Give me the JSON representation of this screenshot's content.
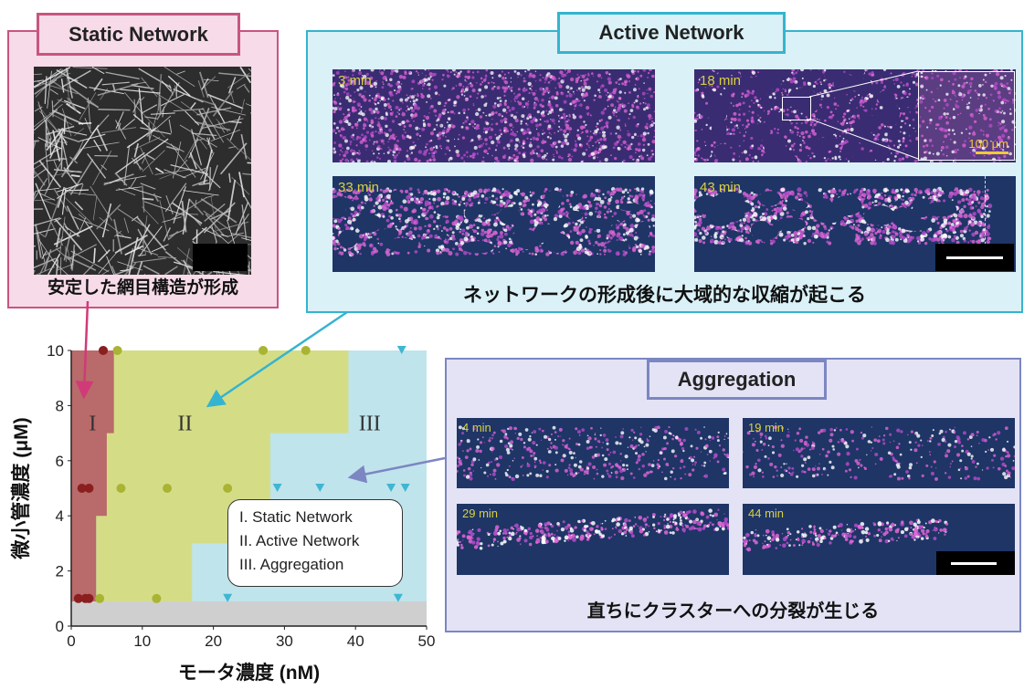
{
  "static_network": {
    "title": "Static Network",
    "caption": "安定した網目構造が形成"
  },
  "active_network": {
    "title": "Active Network",
    "caption": "ネットワークの形成後に大域的な収縮が起こる",
    "frames": [
      {
        "time": "3 min"
      },
      {
        "time": "18 min"
      },
      {
        "time": "33 min"
      },
      {
        "time": "43 min"
      }
    ],
    "inset_scale": "100 μm"
  },
  "aggregation": {
    "title": "Aggregation",
    "caption": "直ちにクラスターへの分裂が生じる",
    "frames": [
      {
        "time": "4 min"
      },
      {
        "time": "19 min"
      },
      {
        "time": "29 min"
      },
      {
        "time": "44 min"
      }
    ]
  },
  "legend": {
    "items": [
      "I. Static Network",
      "II. Active Network",
      "III. Aggregation"
    ]
  },
  "colors": {
    "static": "#c8557f",
    "active": "#35b4cf",
    "aggregation": "#7c86c2",
    "region_I": "#b96a6a",
    "region_II": "#d4dd86",
    "region_III": "#bfe4ec",
    "no_data": "#cfcfcf"
  },
  "chart_data": {
    "type": "scatter",
    "xlabel": "モータ濃度 (nM)",
    "ylabel": "微小管濃度 (μM)",
    "xlim": [
      0,
      50
    ],
    "ylim": [
      0,
      10
    ],
    "xticks": [
      0,
      10,
      20,
      30,
      40,
      50
    ],
    "yticks": [
      0,
      2,
      4,
      6,
      8,
      10
    ],
    "region_labels": [
      "I",
      "II",
      "III"
    ],
    "grid": false,
    "series": [
      {
        "name": "I. Static Network",
        "marker": "circle",
        "color": "#8b1e1e",
        "points": [
          [
            1,
            1
          ],
          [
            2,
            1
          ],
          [
            2.5,
            1
          ],
          [
            1.5,
            5
          ],
          [
            2.5,
            5
          ],
          [
            4.5,
            10
          ]
        ]
      },
      {
        "name": "II. Active Network",
        "marker": "circle",
        "color": "#a9b433",
        "points": [
          [
            4,
            1
          ],
          [
            12,
            1
          ],
          [
            7,
            5
          ],
          [
            13.5,
            5
          ],
          [
            22,
            5
          ],
          [
            6.5,
            10
          ],
          [
            27,
            10
          ],
          [
            33,
            10
          ]
        ]
      },
      {
        "name": "III. Aggregation",
        "marker": "triangle",
        "color": "#3fb6d2",
        "points": [
          [
            22,
            1
          ],
          [
            46,
            1
          ],
          [
            29,
            5
          ],
          [
            35,
            5
          ],
          [
            45,
            5
          ],
          [
            47,
            5
          ],
          [
            46.5,
            10
          ]
        ]
      }
    ]
  }
}
